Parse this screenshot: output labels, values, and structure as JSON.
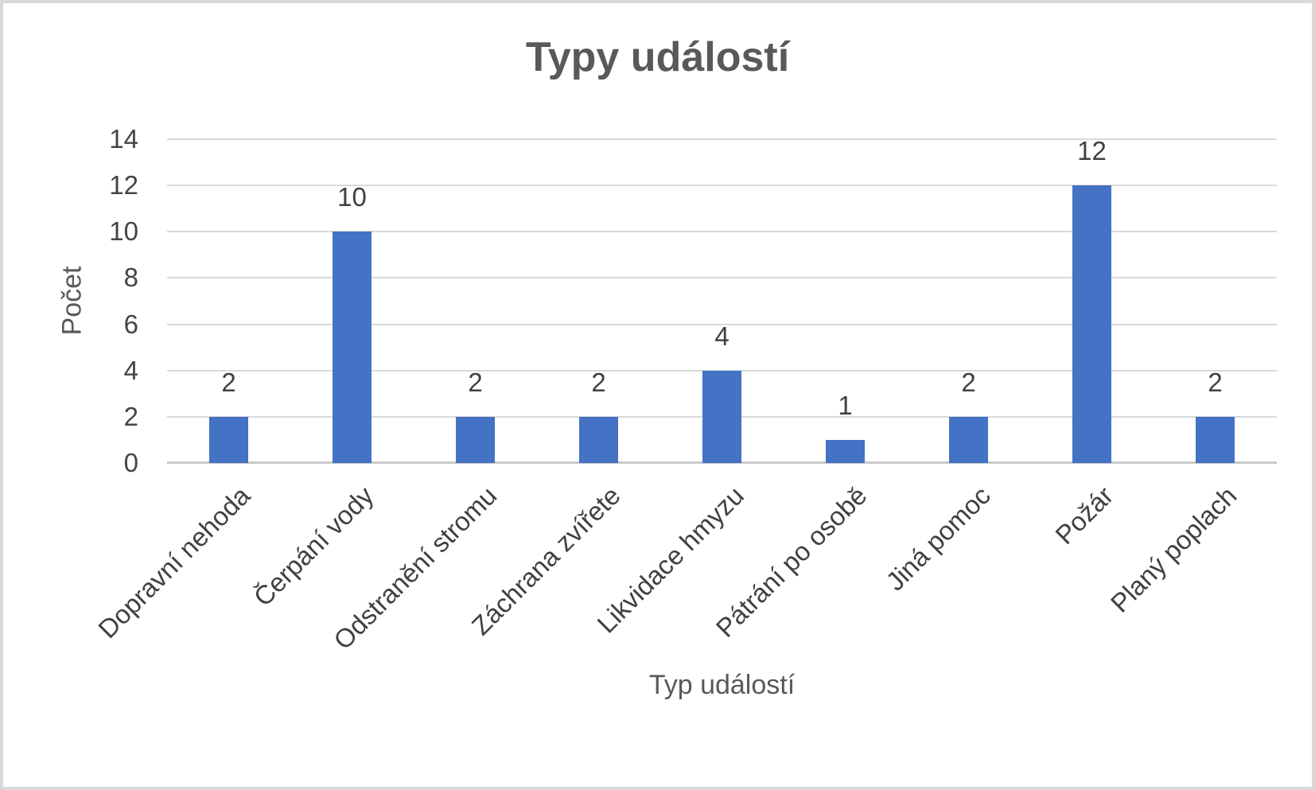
{
  "chart_data": {
    "type": "bar",
    "title": "Typy událostí",
    "xlabel": "Typ událostí",
    "ylabel": "Počet",
    "categories": [
      "Dopravní nehoda",
      "Čerpání vody",
      "Odstranění stromu",
      "Záchrana zvířete",
      "Likvidace hmyzu",
      "Pátrání po osobě",
      "Jiná pomoc",
      "Požár",
      "Planý poplach"
    ],
    "values": [
      2,
      10,
      2,
      2,
      4,
      1,
      2,
      12,
      2
    ],
    "ylim": [
      0,
      14
    ],
    "yticks": [
      0,
      2,
      4,
      6,
      8,
      10,
      12,
      14
    ],
    "grid": true,
    "data_labels": true,
    "legend": "none",
    "colors": {
      "bar": "#4472c4",
      "gridline": "#d9d9d9",
      "axis_line": "#c9c9c9",
      "title": "#595959",
      "tick_label": "#444444",
      "data_label": "#404040"
    }
  }
}
